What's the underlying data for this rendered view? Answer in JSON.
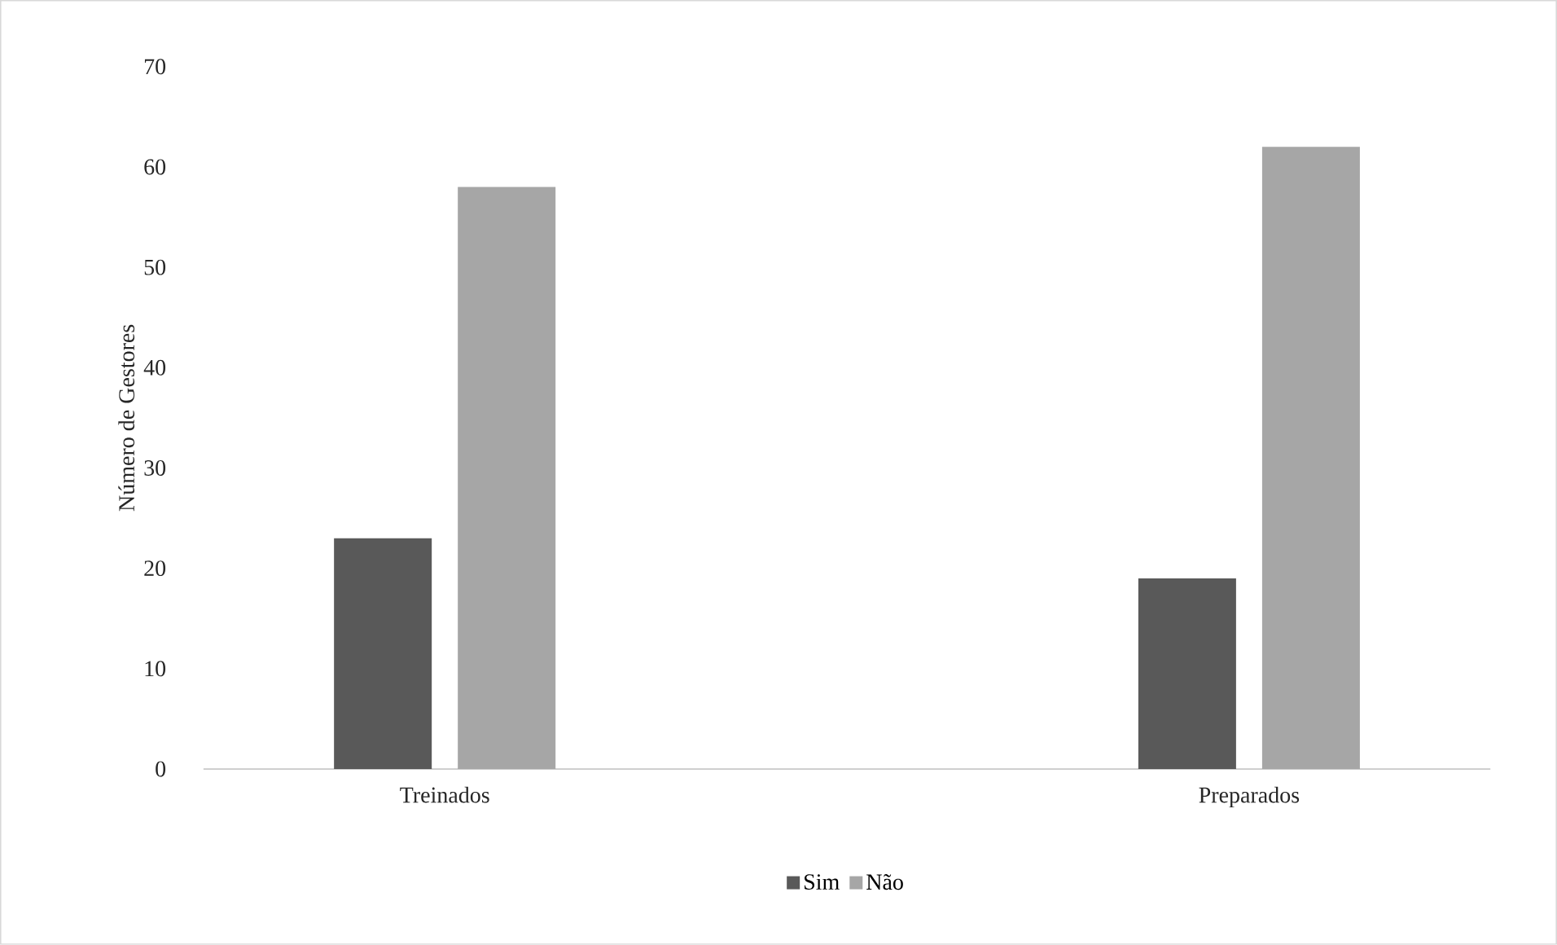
{
  "chart_data": {
    "type": "bar",
    "ylabel": "Número de Gestores",
    "categories": [
      "Treinados",
      "Preparados"
    ],
    "series": [
      {
        "name": "Sim",
        "color": "#595959",
        "values": [
          23,
          19
        ]
      },
      {
        "name": "Não",
        "color": "#a6a6a6",
        "values": [
          58,
          62
        ]
      }
    ],
    "ylim": [
      0,
      70
    ],
    "yticks": [
      0,
      10,
      20,
      30,
      40,
      50,
      60,
      70
    ],
    "grid": false,
    "legend": "bottom"
  }
}
